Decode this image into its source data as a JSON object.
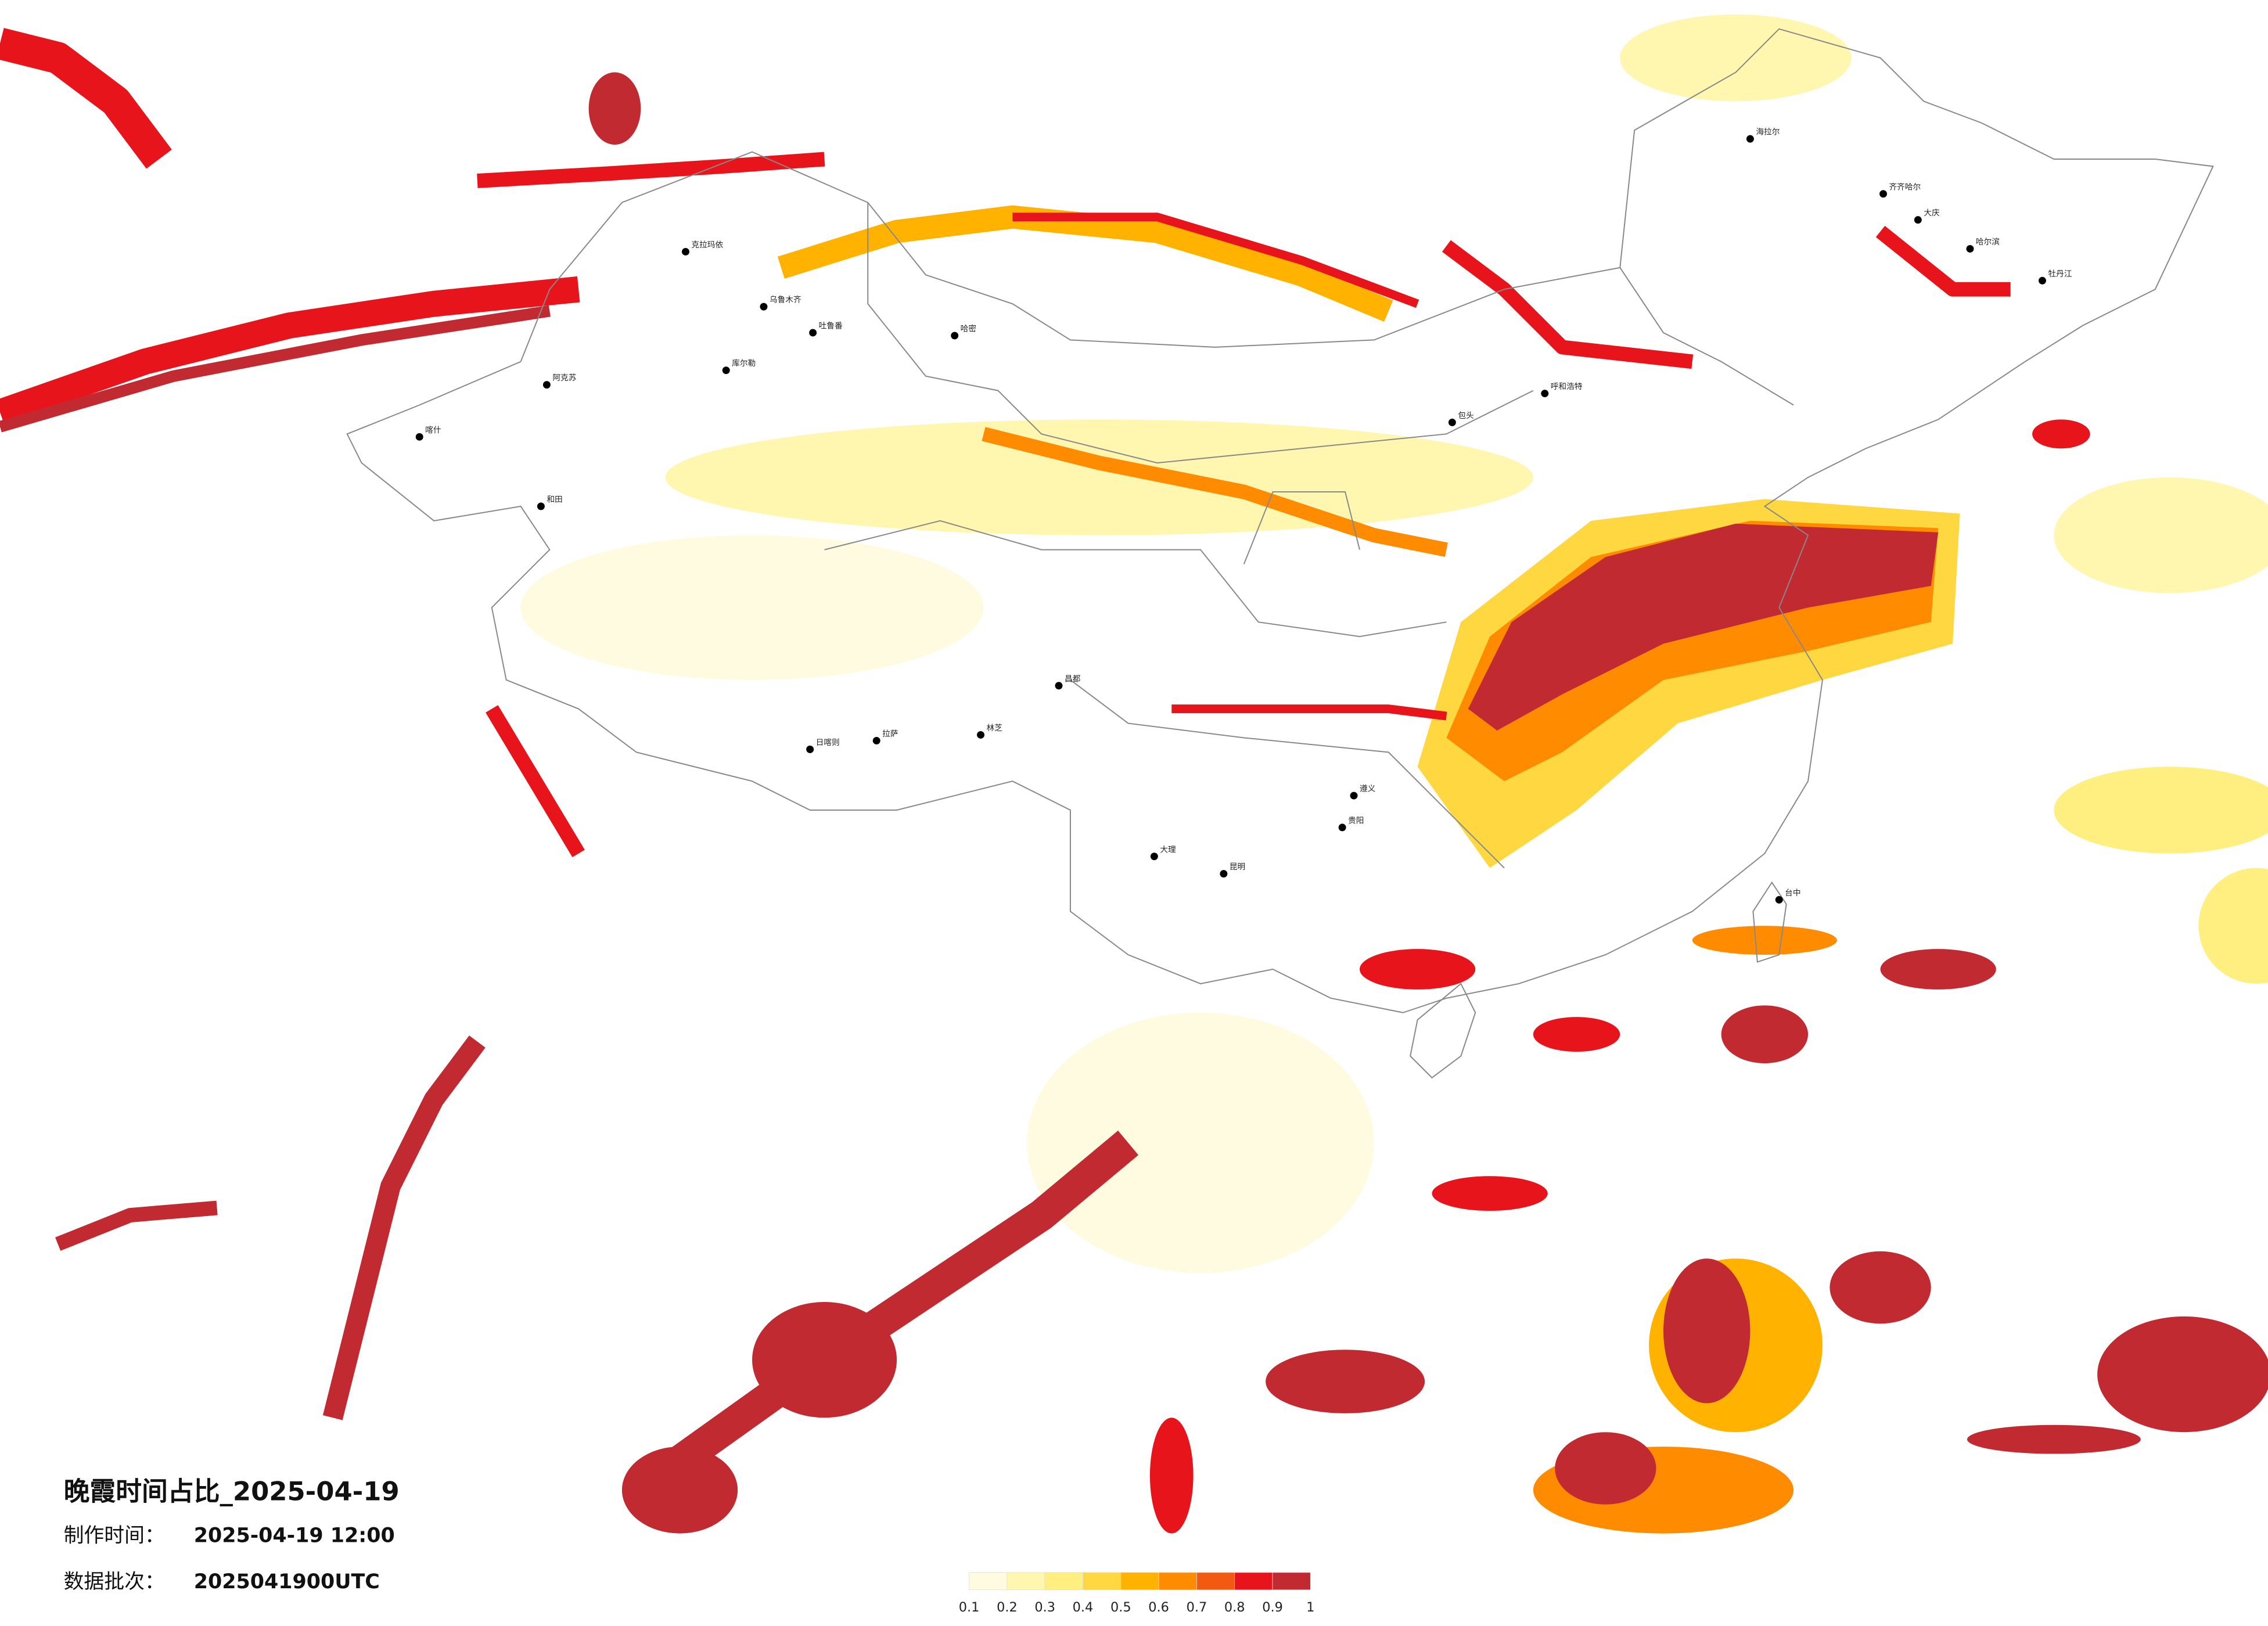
{
  "title": "晚霞时间占比_2025-04-19",
  "production_time": {
    "label": "制作时间：",
    "value": "2025-04-19 12:00"
  },
  "data_batch": {
    "label": "数据批次：",
    "value": "2025041900UTC"
  },
  "legend": {
    "ticks": [
      0.1,
      0.2,
      0.3,
      0.4,
      0.5,
      0.6,
      0.7,
      0.8,
      0.9,
      1
    ],
    "colors": [
      "#fffbe0",
      "#fff6b0",
      "#ffee80",
      "#ffd740",
      "#ffb300",
      "#ff8c00",
      "#f25a12",
      "#e8141c",
      "#c02a30"
    ]
  },
  "cities": [
    "克拉玛依",
    "乌鲁木齐",
    "吐鲁番",
    "哈密",
    "库尔勒",
    "阿克苏",
    "和田",
    "喀什",
    "日喀则",
    "拉萨",
    "林芝",
    "昌都",
    "海拉尔",
    "齐齐哈尔",
    "大庆",
    "哈尔滨",
    "牡丹江",
    "呼和浩特",
    "包头",
    "大理",
    "昆明",
    "贵阳",
    "遵义",
    "台中"
  ]
}
